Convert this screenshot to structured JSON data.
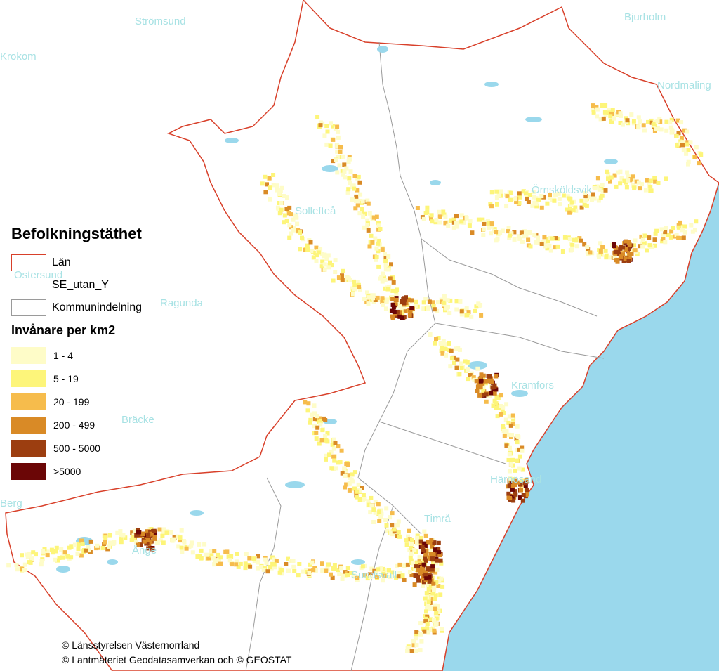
{
  "colors": {
    "sea": "#9ad8ec",
    "lake": "#9ad8ec",
    "land": "#ffffff",
    "county_border": "#d8402a",
    "municipal_border": "#9a9a9a",
    "place_label": "#a8e2e4"
  },
  "places": [
    {
      "name": "Strömsund"
    },
    {
      "name": "Krokom"
    },
    {
      "name": "Bjurholm"
    },
    {
      "name": "Nordmaling"
    },
    {
      "name": "Örnsköldsvik"
    },
    {
      "name": "Sollefteå"
    },
    {
      "name": "Östersund"
    },
    {
      "name": "Ragunda"
    },
    {
      "name": "Kramfors"
    },
    {
      "name": "Bräcke"
    },
    {
      "name": "Härnösand"
    },
    {
      "name": "Ånge"
    },
    {
      "name": "Timrå"
    },
    {
      "name": "Sundsvall"
    },
    {
      "name": "Berg"
    }
  ],
  "legend": {
    "title": "Befolkningstäthet",
    "items": [
      {
        "label": "Län"
      },
      {
        "label": "SE_utan_Y"
      },
      {
        "label": "Kommunindelning"
      }
    ],
    "density_title": "Invånare per km2",
    "classes": [
      {
        "label": "1 - 4",
        "color": "#fefcc8"
      },
      {
        "label": "5 - 19",
        "color": "#fdf57a"
      },
      {
        "label": "20 - 199",
        "color": "#f6bc4c"
      },
      {
        "label": "200 - 499",
        "color": "#d98a26"
      },
      {
        "label": "500 - 5000",
        "color": "#9c3e10"
      },
      {
        "label": ">5000",
        "color": "#6b0606"
      }
    ]
  },
  "credits": {
    "line1": "© Länsstyrelsen Västernorrland",
    "line2": "© Lantmäteriet Geodatasamverkan och © GEOSTAT"
  }
}
